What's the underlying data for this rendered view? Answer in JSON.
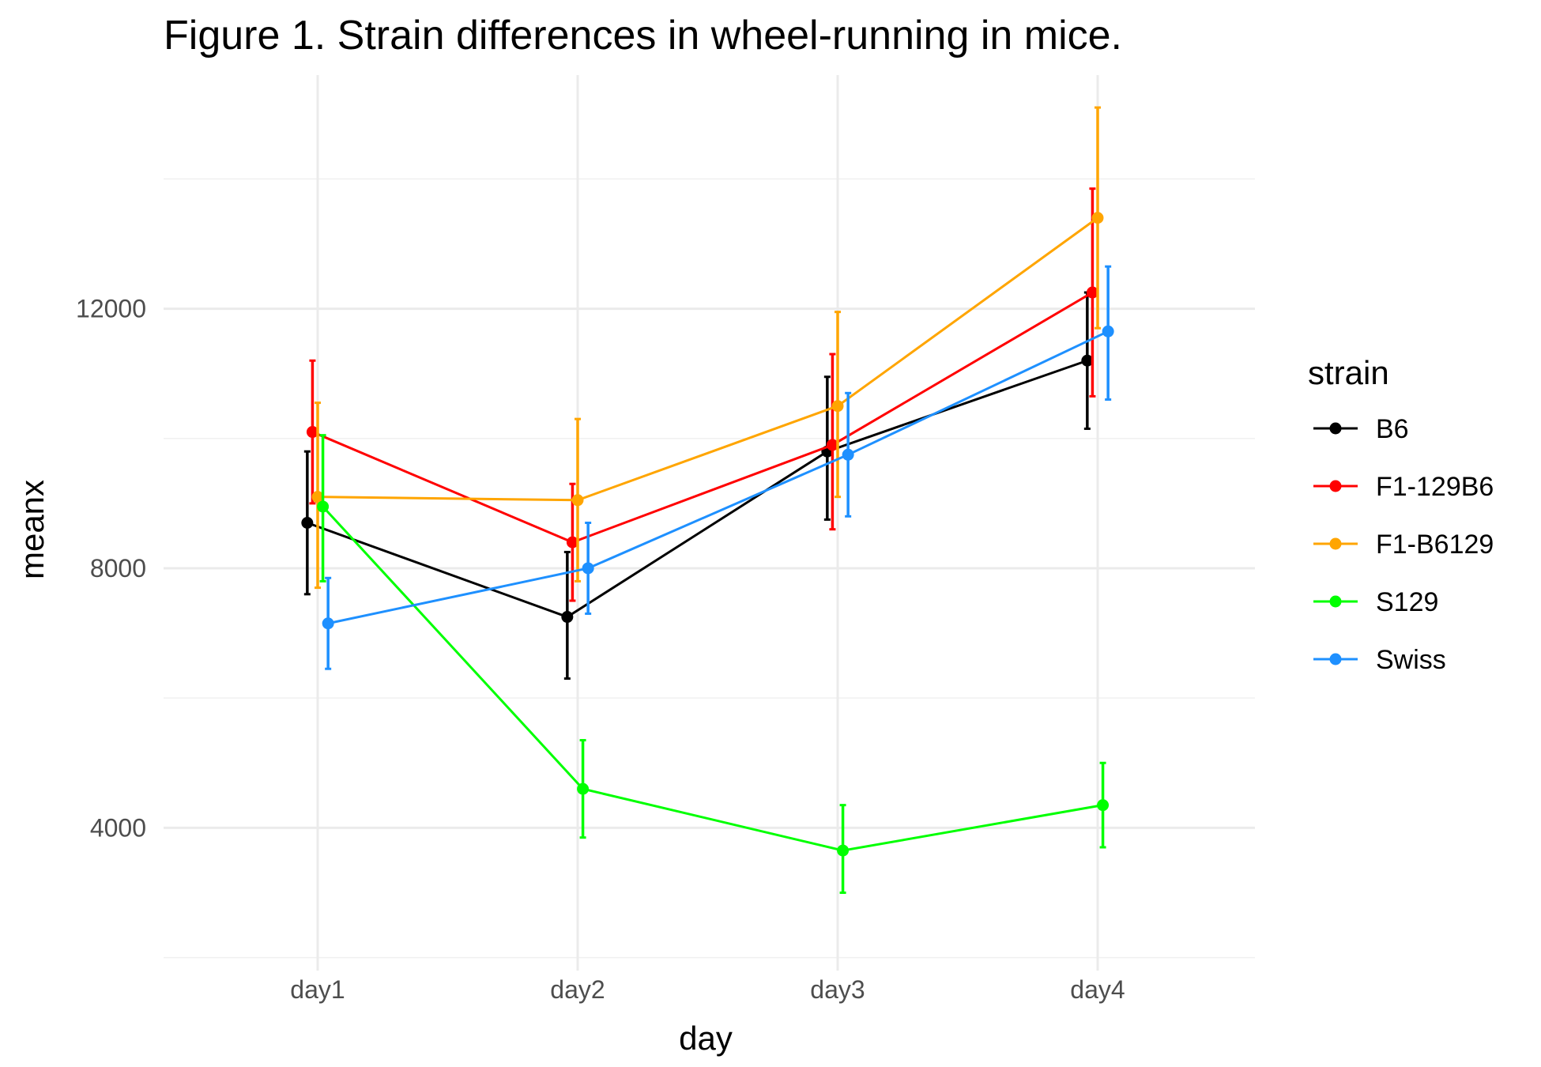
{
  "chart_data": {
    "type": "line",
    "title": "Figure 1. Strain differences in wheel-running in mice.",
    "xlabel": "day",
    "ylabel": "meanx",
    "categories": [
      "day1",
      "day2",
      "day3",
      "day4"
    ],
    "yticks": [
      4000,
      8000,
      12000
    ],
    "ylim": [
      1800,
      15600
    ],
    "grid": true,
    "legend": {
      "title": "strain",
      "position": "right"
    },
    "error_bars": true,
    "series": [
      {
        "name": "B6",
        "color": "#000000",
        "dodge": -0.04,
        "values": [
          8700,
          7250,
          9800,
          11200
        ],
        "lower": [
          7600,
          6300,
          8750,
          10150
        ],
        "upper": [
          9800,
          8250,
          10950,
          12250
        ]
      },
      {
        "name": "F1-129B6",
        "color": "#ff0000",
        "dodge": -0.02,
        "values": [
          10100,
          8400,
          9900,
          12250
        ],
        "lower": [
          9000,
          7500,
          8600,
          10650
        ],
        "upper": [
          11200,
          9300,
          11300,
          13850
        ]
      },
      {
        "name": "F1-B6129",
        "color": "#ffa500",
        "dodge": 0.0,
        "values": [
          9100,
          9050,
          10500,
          13400
        ],
        "lower": [
          7700,
          7800,
          9100,
          11700
        ],
        "upper": [
          10550,
          10300,
          11950,
          15100
        ]
      },
      {
        "name": "S129",
        "color": "#00ff00",
        "dodge": 0.02,
        "values": [
          8950,
          4600,
          3650,
          4350
        ],
        "lower": [
          7800,
          3850,
          3000,
          3700
        ],
        "upper": [
          10050,
          5350,
          4350,
          5000
        ]
      },
      {
        "name": "Swiss",
        "color": "#1e90ff",
        "dodge": 0.04,
        "values": [
          7150,
          8000,
          9750,
          11650
        ],
        "lower": [
          6450,
          7300,
          8800,
          10600
        ],
        "upper": [
          7850,
          8700,
          10700,
          12650
        ]
      }
    ]
  }
}
